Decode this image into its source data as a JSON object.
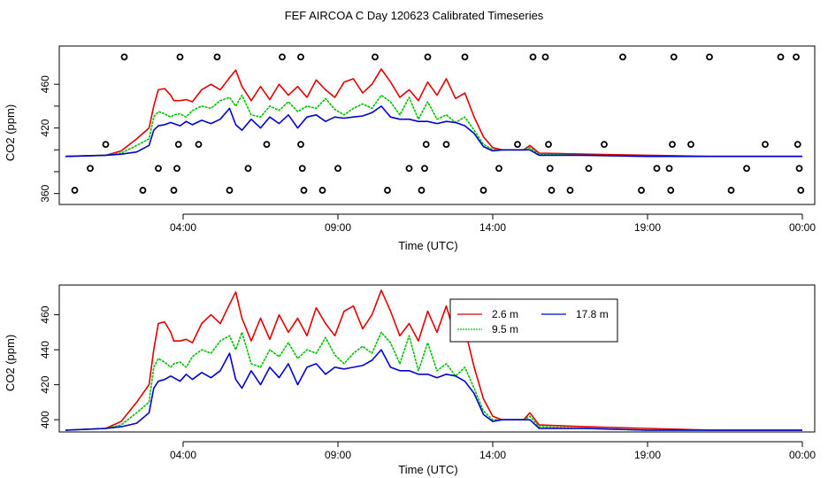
{
  "page_title": "FEF AIRCOA C  Day 120623  Calibrated Timeseries",
  "chart_data": [
    {
      "type": "scatter",
      "title": "FEF AIRCOA C  Day 120623  Calibrated Timeseries",
      "xlabel": "Time (UTC)",
      "ylabel": "CO2 (ppm)",
      "xlim": [
        0.0,
        24.4
      ],
      "ylim": [
        350,
        495
      ],
      "xticks": [
        4,
        9,
        14,
        19,
        24
      ],
      "xtick_labels": [
        "04:00",
        "09:00",
        "14:00",
        "19:00",
        "00:00"
      ],
      "yticks": [
        360,
        380,
        400,
        420,
        440,
        460
      ],
      "ytick_labels": [
        "360",
        "",
        "",
        "420",
        "",
        "460"
      ],
      "circles": [
        {
          "x": 0.5,
          "y": 363
        },
        {
          "x": 1.0,
          "y": 383
        },
        {
          "x": 1.5,
          "y": 405
        },
        {
          "x": 2.1,
          "y": 485
        },
        {
          "x": 2.7,
          "y": 363
        },
        {
          "x": 3.2,
          "y": 383
        },
        {
          "x": 3.7,
          "y": 363
        },
        {
          "x": 3.8,
          "y": 383
        },
        {
          "x": 3.85,
          "y": 405
        },
        {
          "x": 3.9,
          "y": 485
        },
        {
          "x": 4.5,
          "y": 405
        },
        {
          "x": 5.1,
          "y": 485
        },
        {
          "x": 5.5,
          "y": 363
        },
        {
          "x": 6.1,
          "y": 383
        },
        {
          "x": 6.7,
          "y": 405
        },
        {
          "x": 7.2,
          "y": 485
        },
        {
          "x": 7.8,
          "y": 485
        },
        {
          "x": 7.8,
          "y": 405
        },
        {
          "x": 7.85,
          "y": 383
        },
        {
          "x": 7.9,
          "y": 363
        },
        {
          "x": 8.5,
          "y": 363
        },
        {
          "x": 9.0,
          "y": 383
        },
        {
          "x": 10.2,
          "y": 485
        },
        {
          "x": 10.6,
          "y": 363
        },
        {
          "x": 11.3,
          "y": 383
        },
        {
          "x": 11.7,
          "y": 363
        },
        {
          "x": 11.8,
          "y": 383
        },
        {
          "x": 11.85,
          "y": 405
        },
        {
          "x": 11.9,
          "y": 485
        },
        {
          "x": 12.5,
          "y": 405
        },
        {
          "x": 13.1,
          "y": 485
        },
        {
          "x": 13.7,
          "y": 363
        },
        {
          "x": 14.2,
          "y": 383
        },
        {
          "x": 14.8,
          "y": 405
        },
        {
          "x": 15.3,
          "y": 485
        },
        {
          "x": 15.7,
          "y": 485
        },
        {
          "x": 15.8,
          "y": 405
        },
        {
          "x": 15.85,
          "y": 383
        },
        {
          "x": 15.9,
          "y": 363
        },
        {
          "x": 16.5,
          "y": 363
        },
        {
          "x": 17.1,
          "y": 383
        },
        {
          "x": 17.6,
          "y": 405
        },
        {
          "x": 18.2,
          "y": 485
        },
        {
          "x": 18.8,
          "y": 363
        },
        {
          "x": 19.3,
          "y": 383
        },
        {
          "x": 19.7,
          "y": 383
        },
        {
          "x": 19.75,
          "y": 363
        },
        {
          "x": 19.8,
          "y": 405
        },
        {
          "x": 19.85,
          "y": 485
        },
        {
          "x": 20.4,
          "y": 405
        },
        {
          "x": 21.0,
          "y": 485
        },
        {
          "x": 21.7,
          "y": 363
        },
        {
          "x": 22.2,
          "y": 383
        },
        {
          "x": 22.8,
          "y": 405
        },
        {
          "x": 23.3,
          "y": 485
        },
        {
          "x": 23.8,
          "y": 485
        },
        {
          "x": 23.85,
          "y": 405
        },
        {
          "x": 23.9,
          "y": 383
        },
        {
          "x": 23.95,
          "y": 363
        }
      ],
      "series": [
        {
          "name": "2.6 m",
          "color": "#e00000",
          "x": [
            0.2,
            1.5,
            2.0,
            2.5,
            2.9,
            3.05,
            3.2,
            3.4,
            3.6,
            3.7,
            3.9,
            4.1,
            4.3,
            4.6,
            4.9,
            5.2,
            5.5,
            5.7,
            5.9,
            6.2,
            6.5,
            6.8,
            7.1,
            7.4,
            7.7,
            8.0,
            8.3,
            8.6,
            8.9,
            9.2,
            9.5,
            9.8,
            10.1,
            10.4,
            10.7,
            11.0,
            11.3,
            11.6,
            11.9,
            12.2,
            12.5,
            12.8,
            13.1,
            13.4,
            13.7,
            14.0,
            14.3,
            15.0,
            15.2,
            15.5,
            17.0,
            19.0,
            21.0,
            24.0
          ],
          "y": [
            394,
            395,
            399,
            410,
            420,
            440,
            455,
            456,
            450,
            445,
            445,
            446,
            444,
            455,
            460,
            455,
            466,
            473,
            458,
            445,
            458,
            446,
            460,
            450,
            458,
            448,
            464,
            455,
            448,
            462,
            465,
            452,
            460,
            474,
            462,
            448,
            455,
            445,
            462,
            450,
            465,
            447,
            452,
            430,
            412,
            402,
            400,
            400,
            404,
            397,
            396,
            395,
            394,
            394
          ]
        },
        {
          "name": "9.5 m",
          "color": "#00c000",
          "x": [
            0.2,
            1.5,
            2.0,
            2.5,
            2.9,
            3.05,
            3.2,
            3.4,
            3.6,
            3.7,
            3.9,
            4.1,
            4.3,
            4.6,
            4.9,
            5.2,
            5.5,
            5.7,
            5.9,
            6.2,
            6.5,
            6.8,
            7.1,
            7.4,
            7.7,
            8.0,
            8.3,
            8.6,
            8.9,
            9.2,
            9.5,
            9.8,
            10.1,
            10.4,
            10.7,
            11.0,
            11.3,
            11.6,
            11.9,
            12.2,
            12.5,
            12.8,
            13.1,
            13.4,
            13.7,
            14.0,
            14.3,
            15.0,
            15.2,
            15.5,
            17.0,
            19.0,
            21.0,
            24.0
          ],
          "y": [
            394,
            395,
            397,
            404,
            410,
            430,
            435,
            433,
            430,
            432,
            433,
            430,
            436,
            440,
            438,
            445,
            448,
            440,
            450,
            432,
            430,
            440,
            436,
            444,
            435,
            440,
            438,
            447,
            437,
            432,
            438,
            442,
            438,
            450,
            444,
            432,
            448,
            428,
            444,
            428,
            432,
            425,
            430,
            418,
            405,
            400,
            400,
            400,
            402,
            396,
            395,
            394,
            394,
            394
          ]
        },
        {
          "name": "17.8 m",
          "color": "#0000d0",
          "x": [
            0.2,
            1.5,
            2.0,
            2.5,
            2.9,
            3.05,
            3.2,
            3.4,
            3.6,
            3.7,
            3.9,
            4.1,
            4.3,
            4.6,
            4.9,
            5.2,
            5.5,
            5.7,
            5.9,
            6.2,
            6.5,
            6.8,
            7.1,
            7.4,
            7.7,
            8.0,
            8.3,
            8.6,
            8.9,
            9.2,
            9.5,
            9.8,
            10.1,
            10.4,
            10.7,
            11.0,
            11.3,
            11.6,
            11.9,
            12.2,
            12.5,
            12.8,
            13.1,
            13.4,
            13.7,
            14.0,
            14.3,
            15.0,
            15.2,
            15.5,
            17.0,
            19.0,
            21.0,
            24.0
          ],
          "y": [
            394,
            395,
            396,
            398,
            404,
            418,
            422,
            423,
            425,
            424,
            422,
            426,
            423,
            427,
            424,
            428,
            438,
            423,
            418,
            428,
            420,
            430,
            424,
            432,
            420,
            430,
            432,
            426,
            430,
            429,
            430,
            431,
            434,
            440,
            430,
            428,
            428,
            426,
            426,
            424,
            426,
            425,
            422,
            415,
            403,
            399,
            400,
            400,
            400,
            395,
            395,
            394,
            394,
            394
          ]
        }
      ]
    },
    {
      "type": "line",
      "xlabel": "Time (UTC)",
      "ylabel": "CO2 (ppm)",
      "xlim": [
        0.0,
        24.4
      ],
      "ylim": [
        393,
        477
      ],
      "xticks": [
        4,
        9,
        14,
        19,
        24
      ],
      "xtick_labels": [
        "04:00",
        "09:00",
        "14:00",
        "19:00",
        "00:00"
      ],
      "yticks": [
        400,
        420,
        440,
        460
      ],
      "ytick_labels": [
        "400",
        "420",
        "440",
        "460"
      ],
      "legend": {
        "position": "top-right",
        "entries": [
          "2.6 m",
          "9.5 m",
          "17.8 m"
        ]
      },
      "series_ref": "same as chart 1 series"
    }
  ]
}
